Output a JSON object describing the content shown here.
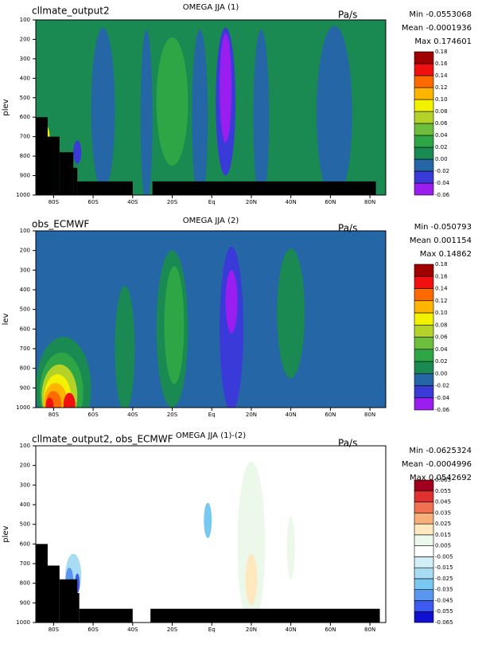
{
  "chart_data": [
    {
      "type": "contour",
      "title": "OMEGA JJA (1)",
      "label": "cllmate_output2",
      "units": "Pa/s",
      "stats": [
        {
          "label": "Min",
          "value": -0.0553068
        },
        {
          "label": "Mean",
          "value": -0.0001936
        },
        {
          "label": "Max",
          "value": 0.174601
        }
      ],
      "ylabel": "plev",
      "xlim": [
        -89,
        88
      ],
      "xticks": [
        {
          "value": -80,
          "label": "80S"
        },
        {
          "value": -60,
          "label": "60S"
        },
        {
          "value": -40,
          "label": "40S"
        },
        {
          "value": -20,
          "label": "20S"
        },
        {
          "value": 0,
          "label": "Eq"
        },
        {
          "value": 20,
          "label": "20N"
        },
        {
          "value": 40,
          "label": "40N"
        },
        {
          "value": 60,
          "label": "60N"
        },
        {
          "value": 80,
          "label": "80N"
        }
      ],
      "ylim": [
        100,
        1000
      ],
      "y_reversed": true,
      "yticks": [
        100,
        200,
        300,
        400,
        500,
        600,
        700,
        800,
        900,
        1000
      ],
      "levels": [
        -0.06,
        -0.04,
        -0.02,
        {
          "value": 0,
          "label": "0.00"
        },
        0.02,
        0.04,
        0.06,
        0.08,
        {
          "value": 0.1,
          "label": "0.10"
        },
        0.12,
        0.14,
        0.16,
        0.18
      ],
      "colors": [
        "#9a1ef0",
        "#3a3ad8",
        "#2466a6",
        "#1a8a52",
        "#2ea646",
        "#6cbe3c",
        "#b4d228",
        "#f2f200",
        "#ffb400",
        "#ff6a00",
        "#f01010",
        "#a00000"
      ]
    },
    {
      "type": "contour",
      "title": "OMEGA JJA (2)",
      "label": "obs_ECMWF",
      "units": "Pa/s",
      "stats": [
        {
          "label": "Min",
          "value": -0.050793
        },
        {
          "label": "Mean",
          "value": 0.001154
        },
        {
          "label": "Max",
          "value": 0.14862
        }
      ],
      "ylabel": "lev",
      "xlim": [
        -89,
        88
      ],
      "xticks": [
        {
          "value": -80,
          "label": "80S"
        },
        {
          "value": -60,
          "label": "60S"
        },
        {
          "value": -40,
          "label": "40S"
        },
        {
          "value": -20,
          "label": "20S"
        },
        {
          "value": 0,
          "label": "Eq"
        },
        {
          "value": 20,
          "label": "20N"
        },
        {
          "value": 40,
          "label": "40N"
        },
        {
          "value": 60,
          "label": "60N"
        },
        {
          "value": 80,
          "label": "80N"
        }
      ],
      "ylim": [
        100,
        1000
      ],
      "y_reversed": true,
      "yticks": [
        100,
        200,
        300,
        400,
        500,
        600,
        700,
        800,
        900,
        1000
      ],
      "levels": [
        -0.06,
        -0.04,
        -0.02,
        {
          "value": 0,
          "label": "0.00"
        },
        0.02,
        0.04,
        0.06,
        0.08,
        {
          "value": 0.1,
          "label": "0.10"
        },
        0.12,
        0.14,
        0.16,
        0.18
      ],
      "colors": [
        "#9a1ef0",
        "#3a3ad8",
        "#2466a6",
        "#1a8a52",
        "#2ea646",
        "#6cbe3c",
        "#b4d228",
        "#f2f200",
        "#ffb400",
        "#ff6a00",
        "#f01010",
        "#a00000"
      ]
    },
    {
      "type": "contour",
      "title": "OMEGA JJA (1)-(2)",
      "label": "cllmate_output2, obs_ECMWF",
      "units": "Pa/s",
      "stats": [
        {
          "label": "Min",
          "value": -0.0625324
        },
        {
          "label": "Mean",
          "value": -0.0004996
        },
        {
          "label": "Max",
          "value": 0.0542692
        }
      ],
      "ylabel": "plev",
      "xlim": [
        -89,
        88
      ],
      "xticks": [
        {
          "value": -80,
          "label": "80S"
        },
        {
          "value": -60,
          "label": "60S"
        },
        {
          "value": -40,
          "label": "40S"
        },
        {
          "value": -20,
          "label": "20S"
        },
        {
          "value": 0,
          "label": "Eq"
        },
        {
          "value": 20,
          "label": "20N"
        },
        {
          "value": 40,
          "label": "40N"
        },
        {
          "value": 60,
          "label": "60N"
        },
        {
          "value": 80,
          "label": "80N"
        }
      ],
      "ylim": [
        100,
        1000
      ],
      "y_reversed": true,
      "yticks": [
        100,
        200,
        300,
        400,
        500,
        600,
        700,
        800,
        900,
        1000
      ],
      "levels": [
        -0.065,
        -0.055,
        -0.045,
        -0.035,
        -0.025,
        -0.015,
        -0.005,
        0.005,
        0.015,
        0.025,
        0.035,
        0.045,
        0.055,
        0.065
      ],
      "colors": [
        "#1010d0",
        "#3c5af0",
        "#5a96f0",
        "#78c8f0",
        "#a8dcf2",
        "#d2eef6",
        "#ffffff",
        "#ecf8ea",
        "#fde8c0",
        "#f8b07a",
        "#f07050",
        "#e03030",
        "#a0001e"
      ]
    }
  ]
}
